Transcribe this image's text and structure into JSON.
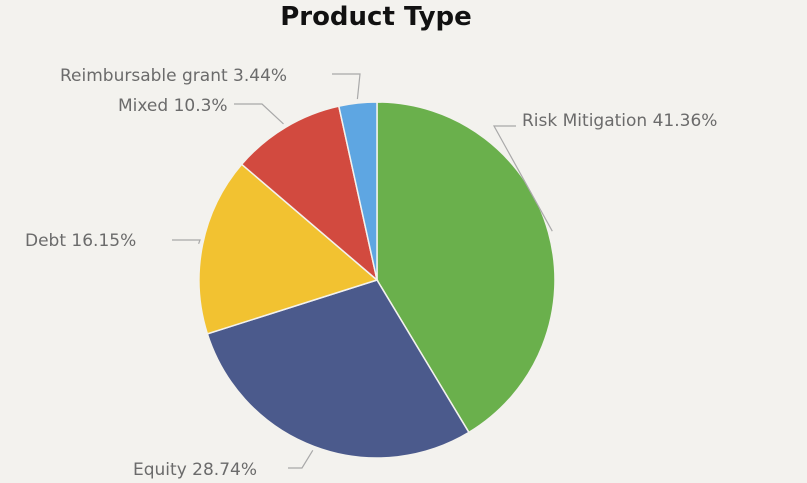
{
  "chart_data": {
    "type": "pie",
    "title": "Product Type",
    "slices": [
      {
        "name": "Risk Mitigation",
        "value": 41.36,
        "label": "Risk Mitigation 41.36%",
        "color": "#6ab04c"
      },
      {
        "name": "Equity",
        "value": 28.74,
        "label": "Equity 28.74%",
        "color": "#4b5a8c"
      },
      {
        "name": "Debt",
        "value": 16.15,
        "label": "Debt 16.15%",
        "color": "#f2c231"
      },
      {
        "name": "Mixed",
        "value": 10.3,
        "label": "Mixed 10.3%",
        "color": "#d24a3f"
      },
      {
        "name": "Reimbursable grant",
        "value": 3.44,
        "label": "Reimbursable grant 3.44%",
        "color": "#5ea6e2"
      }
    ],
    "start_angle": "top",
    "direction": "clockwise",
    "legend": "none"
  }
}
